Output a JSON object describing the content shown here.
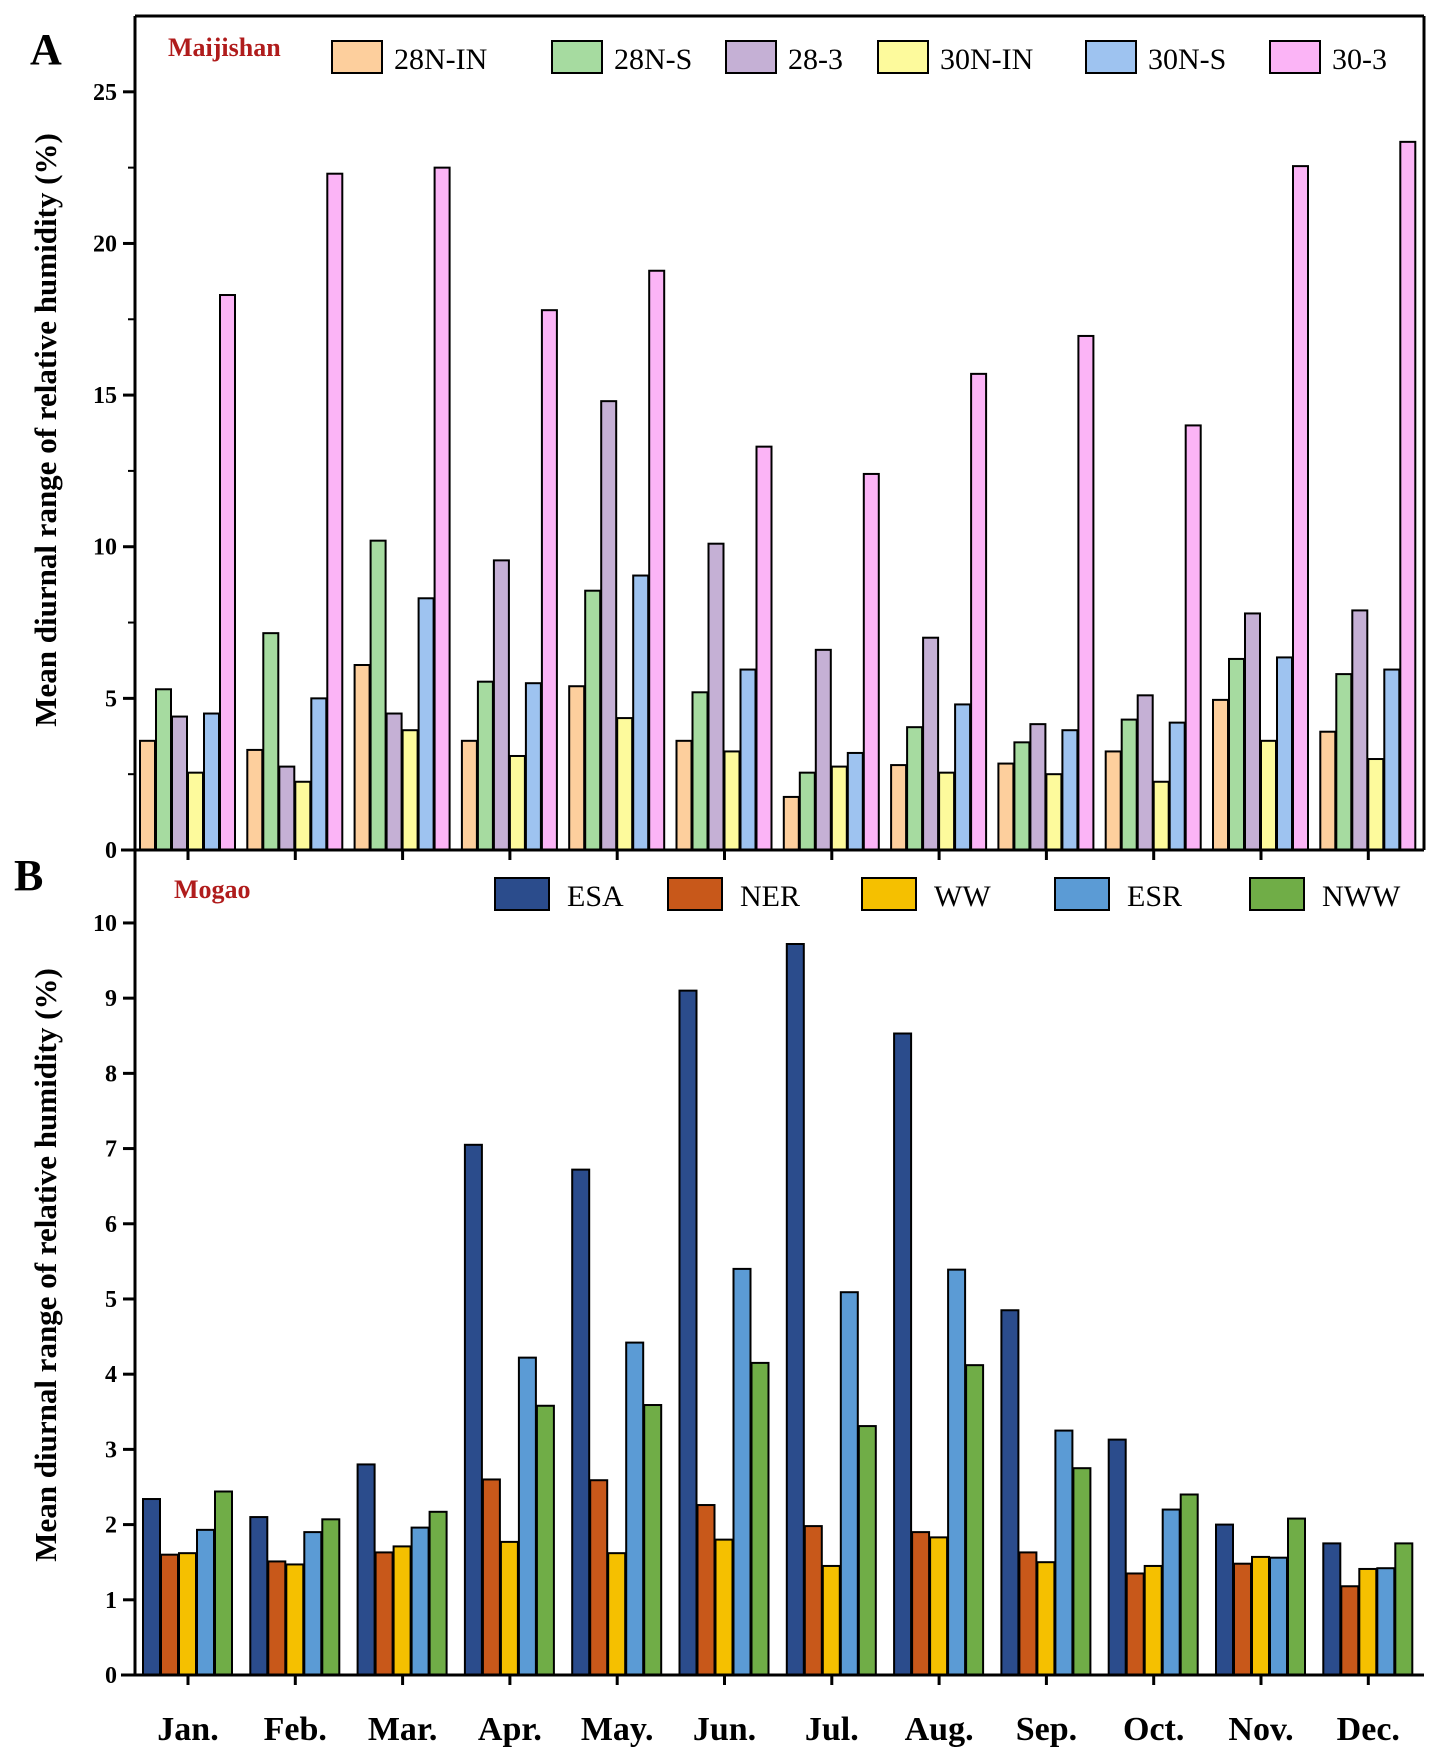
{
  "chart_data": [
    {
      "type": "bar",
      "panel": "A",
      "title": "Maijishan",
      "xlabel": "",
      "ylabel": "Mean diurnal range of relative humidity (%)",
      "ylim": [
        0,
        27.5
      ],
      "yticks": [
        0,
        5,
        10,
        15,
        20,
        25
      ],
      "legend_position": "top",
      "categories": [
        "Jan.",
        "Feb.",
        "Mar.",
        "Apr.",
        "May.",
        "Jun.",
        "Jul.",
        "Aug.",
        "Sep.",
        "Oct.",
        "Nov.",
        "Dec."
      ],
      "series": [
        {
          "name": "28N-IN",
          "color": "#fdcf9d",
          "values": [
            3.6,
            3.3,
            6.1,
            3.6,
            5.4,
            3.6,
            1.75,
            2.8,
            2.85,
            3.25,
            4.95,
            3.9
          ]
        },
        {
          "name": "28N-S",
          "color": "#a6dba0",
          "values": [
            5.3,
            7.15,
            10.2,
            5.55,
            8.55,
            5.2,
            2.55,
            4.05,
            3.55,
            4.3,
            6.3,
            5.8
          ]
        },
        {
          "name": "28-3",
          "color": "#c5b0d5",
          "values": [
            4.4,
            2.75,
            4.5,
            9.55,
            14.8,
            10.1,
            6.6,
            7.0,
            4.15,
            5.1,
            7.8,
            7.9
          ]
        },
        {
          "name": "30N-IN",
          "color": "#fdfa9c",
          "values": [
            2.55,
            2.25,
            3.95,
            3.1,
            4.35,
            3.25,
            2.75,
            2.55,
            2.5,
            2.25,
            3.6,
            3.0
          ]
        },
        {
          "name": "30N-S",
          "color": "#9ec3f0",
          "values": [
            4.5,
            5.0,
            8.3,
            5.5,
            9.05,
            5.95,
            3.2,
            4.8,
            3.95,
            4.2,
            6.35,
            5.95
          ]
        },
        {
          "name": "30-3",
          "color": "#fbb4f6",
          "values": [
            18.3,
            22.3,
            22.5,
            17.8,
            19.1,
            13.3,
            12.4,
            15.7,
            16.95,
            14.0,
            22.55,
            23.35
          ]
        }
      ]
    },
    {
      "type": "bar",
      "panel": "B",
      "title": "Mogao",
      "xlabel": "",
      "ylabel": "Mean diurnal range of relative humidity (%)",
      "ylim": [
        0,
        10.97
      ],
      "yticks": [
        0,
        1,
        2,
        3,
        4,
        5,
        6,
        7,
        8,
        9,
        10
      ],
      "legend_position": "top-right",
      "categories": [
        "Jan.",
        "Feb.",
        "Mar.",
        "Apr.",
        "May.",
        "Jun.",
        "Jul.",
        "Aug.",
        "Sep.",
        "Oct.",
        "Nov.",
        "Dec."
      ],
      "series": [
        {
          "name": "ESA",
          "color": "#2b4c8c",
          "values": [
            2.34,
            2.1,
            2.8,
            7.05,
            6.72,
            9.1,
            9.72,
            8.53,
            4.85,
            3.13,
            2.0,
            1.75
          ]
        },
        {
          "name": "NER",
          "color": "#c8581a",
          "values": [
            1.6,
            1.51,
            1.63,
            2.6,
            2.59,
            2.26,
            1.98,
            1.9,
            1.63,
            1.35,
            1.48,
            1.18
          ]
        },
        {
          "name": "WW",
          "color": "#f5c000",
          "values": [
            1.62,
            1.47,
            1.71,
            1.77,
            1.62,
            1.8,
            1.45,
            1.83,
            1.5,
            1.45,
            1.57,
            1.41
          ]
        },
        {
          "name": "ESR",
          "color": "#5b9bd5",
          "values": [
            1.93,
            1.9,
            1.96,
            4.22,
            4.42,
            5.4,
            5.09,
            5.39,
            3.25,
            2.2,
            1.56,
            1.42
          ]
        },
        {
          "name": "NWW",
          "color": "#70ad47",
          "values": [
            2.44,
            2.07,
            2.17,
            3.58,
            3.59,
            4.15,
            3.31,
            4.12,
            2.75,
            2.4,
            2.08,
            1.75
          ]
        }
      ]
    }
  ]
}
